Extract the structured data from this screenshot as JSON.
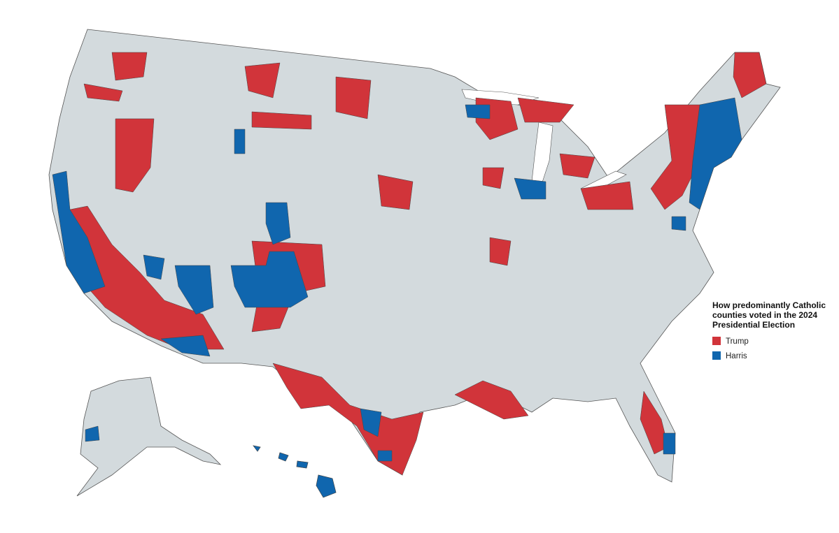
{
  "legend": {
    "title_lines": [
      "How predominantly Catholic",
      "counties voted in the 2024",
      "Presidential Election"
    ],
    "items": [
      {
        "label": "Trump",
        "color": "#d1343a"
      },
      {
        "label": "Harris",
        "color": "#1066ae"
      }
    ]
  }
}
